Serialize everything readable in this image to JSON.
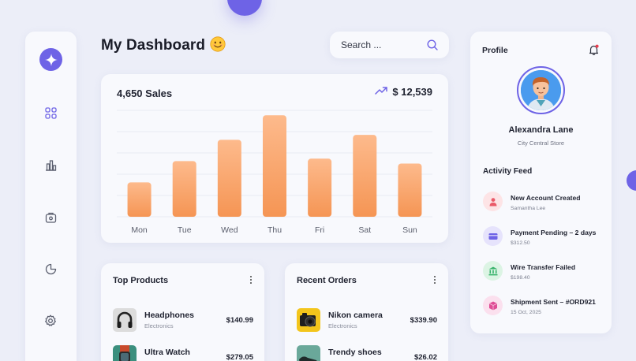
{
  "header": {
    "title": "My Dashboard",
    "title_emoji": "😊"
  },
  "search": {
    "placeholder": "Search ..."
  },
  "sidebar": {
    "items": [
      {
        "icon": "grid-icon"
      },
      {
        "icon": "bar-chart-icon"
      },
      {
        "icon": "wallet-icon"
      },
      {
        "icon": "pie-chart-icon"
      },
      {
        "icon": "gear-icon"
      }
    ],
    "accent": "#6e63e6"
  },
  "sales_card": {
    "sales_total": "4,650 Sales",
    "revenue": "$ 12,539"
  },
  "chart_data": {
    "type": "bar",
    "categories": [
      "Mon",
      "Tue",
      "Wed",
      "Thu",
      "Fri",
      "Sat",
      "Sun"
    ],
    "values": [
      42,
      68,
      94,
      124,
      71,
      100,
      65
    ],
    "ylim": [
      0,
      130
    ],
    "grid": true,
    "bar_color_top": "#fdba8c",
    "bar_color_bottom": "#f59554"
  },
  "top_products": {
    "title": "Top Products",
    "items": [
      {
        "name": "Headphones",
        "category": "Electronics",
        "price": "$140.99"
      },
      {
        "name": "Ultra Watch",
        "category": "",
        "price": "$279.05"
      }
    ]
  },
  "recent_orders": {
    "title": "Recent Orders",
    "items": [
      {
        "name": "Nikon camera",
        "category": "Electronics",
        "price": "$339.90"
      },
      {
        "name": "Trendy shoes",
        "category": "",
        "price": "$26.02"
      }
    ]
  },
  "profile": {
    "label": "Profile",
    "name": "Alexandra Lane",
    "store": "City Central Store"
  },
  "activity_feed": {
    "title": "Activity Feed",
    "items": [
      {
        "title": "New Account Created",
        "sub": "Samantha Lee",
        "icon": "user-icon",
        "bg": "#fde4e6",
        "fg": "#ea5a69"
      },
      {
        "title": "Payment Pending – 2 days",
        "sub": "$312.50",
        "icon": "card-icon",
        "bg": "#e6e3fc",
        "fg": "#6e63e6"
      },
      {
        "title": "Wire Transfer Failed",
        "sub": "$198.40",
        "icon": "bank-icon",
        "bg": "#dcf4e4",
        "fg": "#36b26a"
      },
      {
        "title": "Shipment Sent – #ORD921",
        "sub": "15 Oct, 2025",
        "icon": "box-icon",
        "bg": "#fbe0ee",
        "fg": "#df4c95"
      }
    ]
  }
}
